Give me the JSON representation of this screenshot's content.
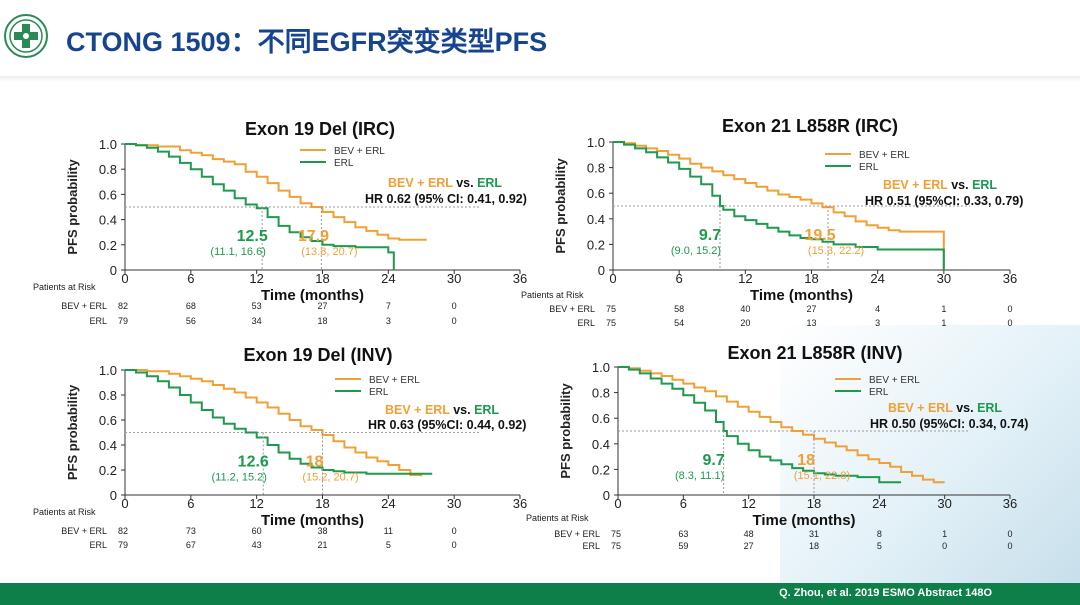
{
  "slide": {
    "title": "CTONG 1509：不同EGFR突变类型PFS",
    "citation": "Q. Zhou, et al. 2019 ESMO Abstract 148O"
  },
  "colors": {
    "title": "#17448f",
    "bev_erl": "#f0a035",
    "erl": "#1e9a4e",
    "footer": "#0e7f48"
  },
  "chart_data": [
    {
      "type": "line",
      "title": "Exon 19 Del (IRC)",
      "ylabel": "PFS probability",
      "xlabel": "Time (months)",
      "xlim": [
        0,
        36
      ],
      "ylim": [
        0,
        1.0
      ],
      "xticks": [
        "0",
        "6",
        "12",
        "18",
        "24",
        "30",
        "36"
      ],
      "yticks": [
        "0",
        "0.2",
        "0.4",
        "0.6",
        "0.8",
        "1.0"
      ],
      "legend": [
        "BEV + ERL",
        "ERL"
      ],
      "comparison": {
        "a": "BEV + ERL",
        "vs": "vs.",
        "b": "ERL"
      },
      "hr": "HR 0.62 (95% CI: 0.41, 0.92)",
      "series": [
        {
          "name": "BEV + ERL",
          "x": [
            0,
            1,
            3,
            5,
            6,
            7,
            8,
            9,
            10,
            11,
            12,
            13,
            14,
            15,
            16,
            17,
            18,
            19,
            20,
            21,
            22,
            23,
            24,
            25,
            26,
            27.5
          ],
          "y": [
            1.0,
            0.99,
            0.98,
            0.95,
            0.93,
            0.91,
            0.88,
            0.86,
            0.84,
            0.78,
            0.74,
            0.69,
            0.63,
            0.58,
            0.53,
            0.5,
            0.46,
            0.42,
            0.38,
            0.34,
            0.31,
            0.28,
            0.25,
            0.24,
            0.24,
            0.24
          ]
        },
        {
          "name": "ERL",
          "x": [
            0,
            1,
            2,
            3,
            4,
            5,
            6,
            7,
            8,
            9,
            10,
            11,
            12,
            13,
            14,
            15,
            16,
            17,
            18,
            19,
            20,
            21,
            22,
            23,
            24,
            24.5
          ],
          "y": [
            1.0,
            0.99,
            0.97,
            0.94,
            0.9,
            0.85,
            0.8,
            0.74,
            0.68,
            0.63,
            0.57,
            0.52,
            0.49,
            0.42,
            0.35,
            0.3,
            0.26,
            0.23,
            0.2,
            0.19,
            0.19,
            0.18,
            0.18,
            0.18,
            0.14,
            0.0
          ]
        }
      ],
      "median_a": {
        "value": "17.9",
        "ci": "(13.8, 20.7)"
      },
      "median_b": {
        "value": "12.5",
        "ci": "(11.1, 16.6)"
      },
      "risk": {
        "heading": "Patients at Risk",
        "rows": [
          {
            "label": "BEV + ERL",
            "values": [
              "82",
              "68",
              "53",
              "27",
              "7",
              "0"
            ]
          },
          {
            "label": "ERL",
            "values": [
              "79",
              "56",
              "34",
              "18",
              "3",
              "0"
            ]
          }
        ]
      }
    },
    {
      "type": "line",
      "title": "Exon 21 L858R (IRC)",
      "ylabel": "PFS probability",
      "xlabel": "Time (months)",
      "xlim": [
        0,
        36
      ],
      "ylim": [
        0,
        1.0
      ],
      "xticks": [
        "0",
        "6",
        "12",
        "18",
        "24",
        "30",
        "36"
      ],
      "yticks": [
        "0",
        "0.2",
        "0.4",
        "0.6",
        "0.8",
        "1.0"
      ],
      "legend": [
        "BEV + ERL",
        "ERL"
      ],
      "comparison": {
        "a": "BEV + ERL",
        "vs": "vs.",
        "b": "ERL"
      },
      "hr": "HR 0.51 (95%CI: 0.33, 0.79)",
      "series": [
        {
          "name": "BEV + ERL",
          "x": [
            0,
            1,
            2,
            3,
            4,
            5,
            6,
            7,
            8,
            9,
            10,
            11,
            12,
            13,
            14,
            15,
            16,
            17,
            18,
            19,
            20,
            21,
            22,
            23,
            24,
            25,
            26,
            27,
            28,
            29,
            30
          ],
          "y": [
            1.0,
            0.99,
            0.97,
            0.95,
            0.93,
            0.9,
            0.87,
            0.83,
            0.8,
            0.77,
            0.74,
            0.71,
            0.68,
            0.65,
            0.62,
            0.59,
            0.57,
            0.55,
            0.52,
            0.49,
            0.45,
            0.42,
            0.38,
            0.35,
            0.33,
            0.31,
            0.3,
            0.3,
            0.3,
            0.3,
            0.0
          ]
        },
        {
          "name": "ERL",
          "x": [
            0,
            1,
            2,
            3,
            4,
            5,
            6,
            7,
            8,
            9,
            9.7,
            10,
            11,
            12,
            13,
            14,
            15,
            16,
            17,
            18,
            19,
            20,
            22,
            24,
            26,
            28,
            30
          ],
          "y": [
            1.0,
            0.98,
            0.95,
            0.92,
            0.88,
            0.84,
            0.79,
            0.73,
            0.67,
            0.58,
            0.5,
            0.47,
            0.42,
            0.39,
            0.36,
            0.33,
            0.3,
            0.27,
            0.25,
            0.24,
            0.22,
            0.2,
            0.18,
            0.16,
            0.16,
            0.16,
            0.0
          ]
        }
      ],
      "median_a": {
        "value": "19.5",
        "ci": "(15.3, 22.2)"
      },
      "median_b": {
        "value": "9.7",
        "ci": "(9.0, 15.2)"
      },
      "risk": {
        "heading": "Patients at Risk",
        "rows": [
          {
            "label": "BEV + ERL",
            "values": [
              "75",
              "58",
              "40",
              "27",
              "4",
              "1",
              "0"
            ]
          },
          {
            "label": "ERL",
            "values": [
              "75",
              "54",
              "20",
              "13",
              "3",
              "1",
              "0"
            ]
          }
        ]
      }
    },
    {
      "type": "line",
      "title": "Exon 19 Del (INV)",
      "ylabel": "PFS probability",
      "xlabel": "Time (months)",
      "xlim": [
        0,
        36
      ],
      "ylim": [
        0,
        1.0
      ],
      "xticks": [
        "0",
        "6",
        "12",
        "18",
        "24",
        "30",
        "36"
      ],
      "yticks": [
        "0",
        "0.2",
        "0.4",
        "0.6",
        "0.8",
        "1.0"
      ],
      "legend": [
        "BEV + ERL",
        "ERL"
      ],
      "comparison": {
        "a": "BEV + ERL",
        "vs": "vs.",
        "b": "ERL"
      },
      "hr": "HR 0.63 (95%CI: 0.44, 0.92)",
      "series": [
        {
          "name": "BEV + ERL",
          "x": [
            0,
            2,
            4,
            5,
            6,
            7,
            8,
            9,
            10,
            11,
            12,
            13,
            14,
            15,
            16,
            17,
            18,
            19,
            20,
            21,
            22,
            23,
            24,
            25,
            26,
            27
          ],
          "y": [
            1.0,
            0.99,
            0.97,
            0.95,
            0.93,
            0.91,
            0.88,
            0.85,
            0.82,
            0.78,
            0.74,
            0.7,
            0.65,
            0.6,
            0.55,
            0.52,
            0.48,
            0.43,
            0.38,
            0.34,
            0.3,
            0.27,
            0.24,
            0.2,
            0.16,
            0.15
          ]
        },
        {
          "name": "ERL",
          "x": [
            0,
            1,
            2,
            3,
            4,
            5,
            6,
            7,
            8,
            9,
            10,
            11,
            12,
            13,
            14,
            15,
            16,
            17,
            18,
            19,
            20,
            22,
            24,
            26,
            28
          ],
          "y": [
            1.0,
            0.98,
            0.95,
            0.91,
            0.86,
            0.8,
            0.74,
            0.68,
            0.62,
            0.57,
            0.53,
            0.5,
            0.46,
            0.4,
            0.34,
            0.29,
            0.25,
            0.22,
            0.2,
            0.19,
            0.18,
            0.17,
            0.17,
            0.17,
            0.17
          ]
        }
      ],
      "median_a": {
        "value": "18",
        "ci": "(15.2, 20.7)"
      },
      "median_b": {
        "value": "12.6",
        "ci": "(11.2, 15.2)"
      },
      "risk": {
        "heading": "Patients at Risk",
        "rows": [
          {
            "label": "BEV + ERL",
            "values": [
              "82",
              "73",
              "60",
              "38",
              "11",
              "0"
            ]
          },
          {
            "label": "ERL",
            "values": [
              "79",
              "67",
              "43",
              "21",
              "5",
              "0"
            ]
          }
        ]
      }
    },
    {
      "type": "line",
      "title": "Exon 21 L858R (INV)",
      "ylabel": "PFS probability",
      "xlabel": "Time (months)",
      "xlim": [
        0,
        36
      ],
      "ylim": [
        0,
        1.0
      ],
      "xticks": [
        "0",
        "6",
        "12",
        "18",
        "24",
        "30",
        "36"
      ],
      "yticks": [
        "0",
        "0.2",
        "0.4",
        "0.6",
        "0.8",
        "1.0"
      ],
      "legend": [
        "BEV + ERL",
        "ERL"
      ],
      "comparison": {
        "a": "BEV + ERL",
        "vs": "vs.",
        "b": "ERL"
      },
      "hr": "HR 0.50 (95%CI: 0.34, 0.74)",
      "series": [
        {
          "name": "BEV + ERL",
          "x": [
            0,
            1,
            2,
            3,
            4,
            5,
            6,
            7,
            8,
            9,
            10,
            11,
            12,
            13,
            14,
            15,
            16,
            17,
            18,
            19,
            20,
            21,
            22,
            23,
            24,
            25,
            26,
            27,
            28,
            29,
            30
          ],
          "y": [
            1.0,
            0.99,
            0.97,
            0.95,
            0.93,
            0.9,
            0.87,
            0.84,
            0.81,
            0.77,
            0.73,
            0.69,
            0.65,
            0.61,
            0.57,
            0.53,
            0.5,
            0.47,
            0.44,
            0.41,
            0.38,
            0.35,
            0.31,
            0.28,
            0.25,
            0.22,
            0.18,
            0.15,
            0.12,
            0.1,
            0.1
          ]
        },
        {
          "name": "ERL",
          "x": [
            0,
            1,
            2,
            3,
            4,
            5,
            6,
            7,
            8,
            9,
            9.7,
            10,
            11,
            12,
            13,
            14,
            15,
            16,
            17,
            18,
            19,
            20,
            22,
            24,
            26
          ],
          "y": [
            1.0,
            0.98,
            0.95,
            0.91,
            0.87,
            0.83,
            0.78,
            0.72,
            0.66,
            0.57,
            0.5,
            0.46,
            0.4,
            0.35,
            0.3,
            0.27,
            0.24,
            0.21,
            0.19,
            0.17,
            0.16,
            0.15,
            0.14,
            0.1,
            0.1
          ]
        }
      ],
      "median_a": {
        "value": "18",
        "ci": "(15.1, 22.8)"
      },
      "median_b": {
        "value": "9.7",
        "ci": "(8.3, 11.1)"
      },
      "risk": {
        "heading": "Patients at Risk",
        "rows": [
          {
            "label": "BEV + ERL",
            "values": [
              "75",
              "63",
              "48",
              "31",
              "8",
              "1",
              "0"
            ]
          },
          {
            "label": "ERL",
            "values": [
              "75",
              "59",
              "27",
              "18",
              "5",
              "0",
              "0"
            ]
          }
        ]
      }
    }
  ]
}
